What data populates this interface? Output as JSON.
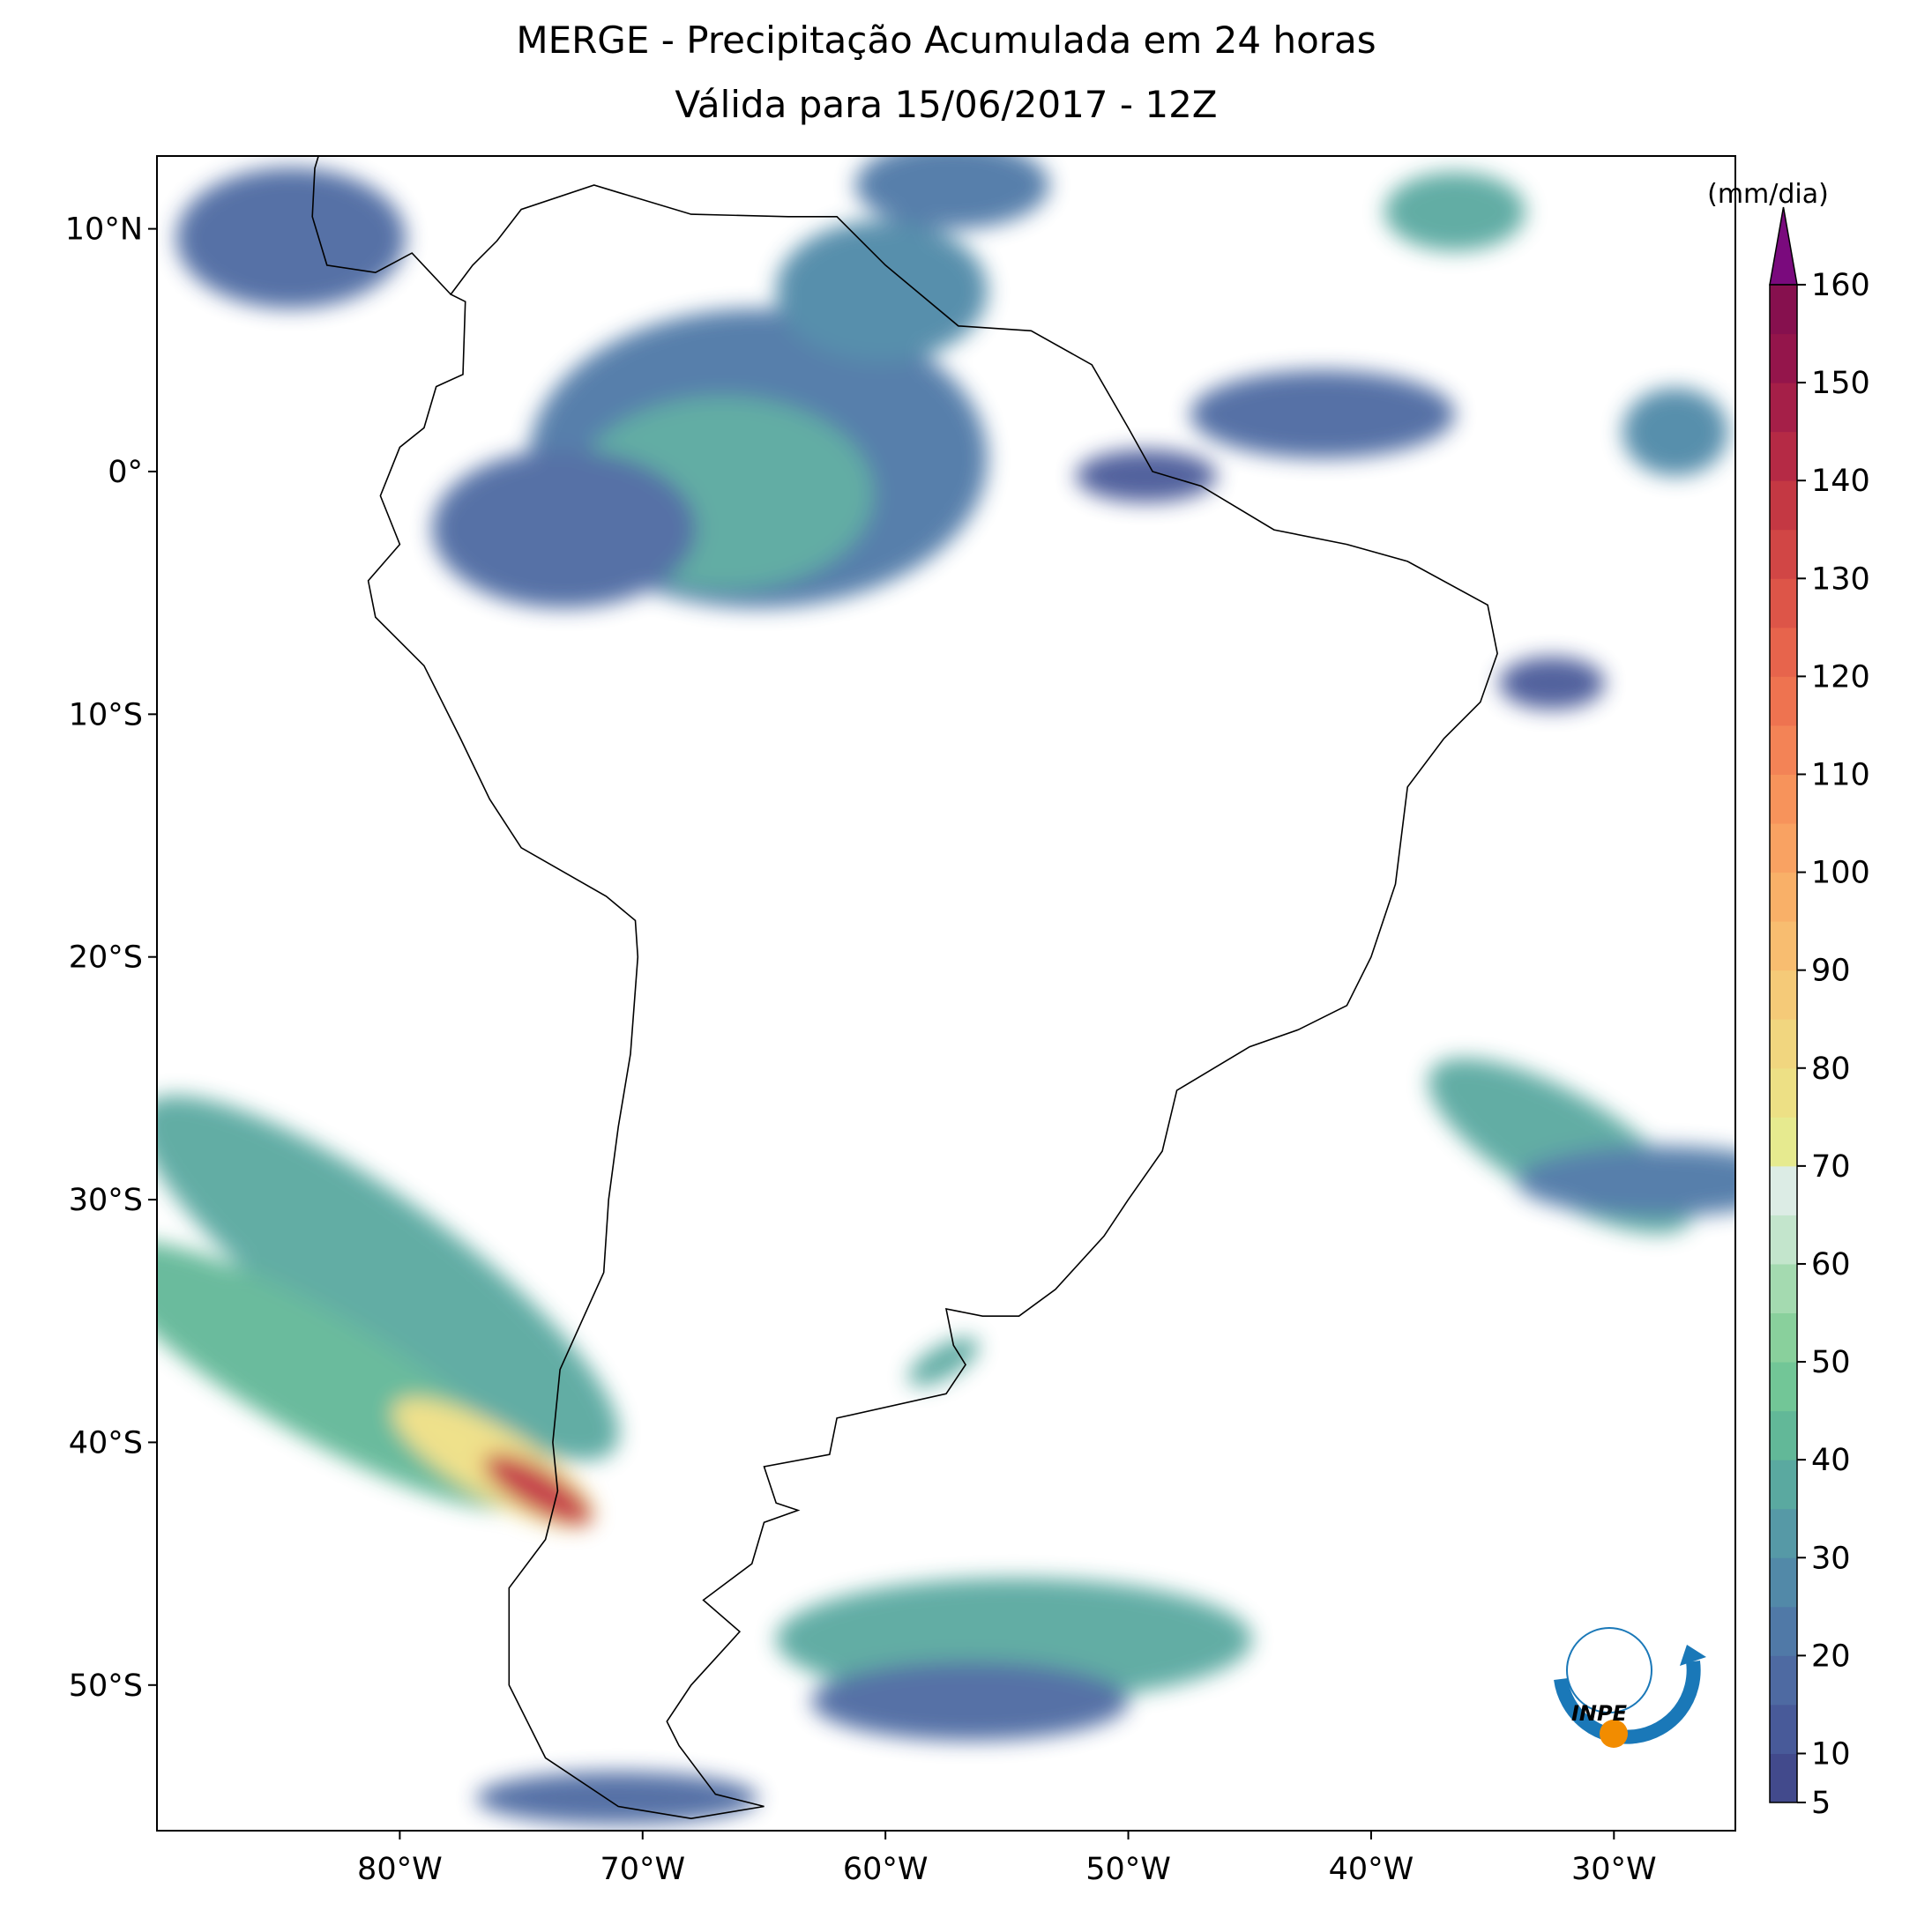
{
  "title": "MERGE - Precipitação Acumulada em 24 horas",
  "subtitle": "Válida para 15/06/2017 - 12Z",
  "map": {
    "lonlim": [
      -90,
      -25
    ],
    "latlim": [
      -56,
      13
    ],
    "xticks": [
      {
        "value": -80,
        "label": "80°W"
      },
      {
        "value": -70,
        "label": "70°W"
      },
      {
        "value": -60,
        "label": "60°W"
      },
      {
        "value": -50,
        "label": "50°W"
      },
      {
        "value": -40,
        "label": "40°W"
      },
      {
        "value": -30,
        "label": "30°W"
      }
    ],
    "yticks": [
      {
        "value": 10,
        "label": "10°N"
      },
      {
        "value": 0,
        "label": "0°"
      },
      {
        "value": -10,
        "label": "10°S"
      },
      {
        "value": -20,
        "label": "20°S"
      },
      {
        "value": -30,
        "label": "30°S"
      },
      {
        "value": -40,
        "label": "40°S"
      },
      {
        "value": -50,
        "label": "50°S"
      }
    ]
  },
  "colorbar": {
    "label": "(mm/dia)",
    "levels": [
      5,
      10,
      15,
      20,
      25,
      30,
      35,
      40,
      45,
      50,
      55,
      60,
      65,
      70,
      75,
      80,
      85,
      90,
      95,
      100,
      105,
      110,
      115,
      120,
      125,
      130,
      135,
      140,
      145,
      150,
      155,
      160
    ],
    "ticks": [
      5,
      10,
      20,
      30,
      40,
      50,
      60,
      70,
      80,
      90,
      100,
      110,
      120,
      130,
      140,
      150,
      160
    ],
    "colors": [
      "#424a8c",
      "#485a99",
      "#4e6aa2",
      "#5079a7",
      "#5289a8",
      "#5699a6",
      "#5aa9a0",
      "#62b898",
      "#72c697",
      "#89d09c",
      "#a4dab0",
      "#c3e5cc",
      "#dcece5",
      "#e6ea8f",
      "#ede085",
      "#f1d67f",
      "#f5ca78",
      "#f8bd70",
      "#f9b068",
      "#f9a262",
      "#f7935b",
      "#f38356",
      "#ee7350",
      "#e7644c",
      "#dd5548",
      "#d14645",
      "#c43843",
      "#b52a45",
      "#a51f48",
      "#94154b",
      "#86104e"
    ],
    "extend_color": "#7a0a7d"
  },
  "logo": "INPE"
}
